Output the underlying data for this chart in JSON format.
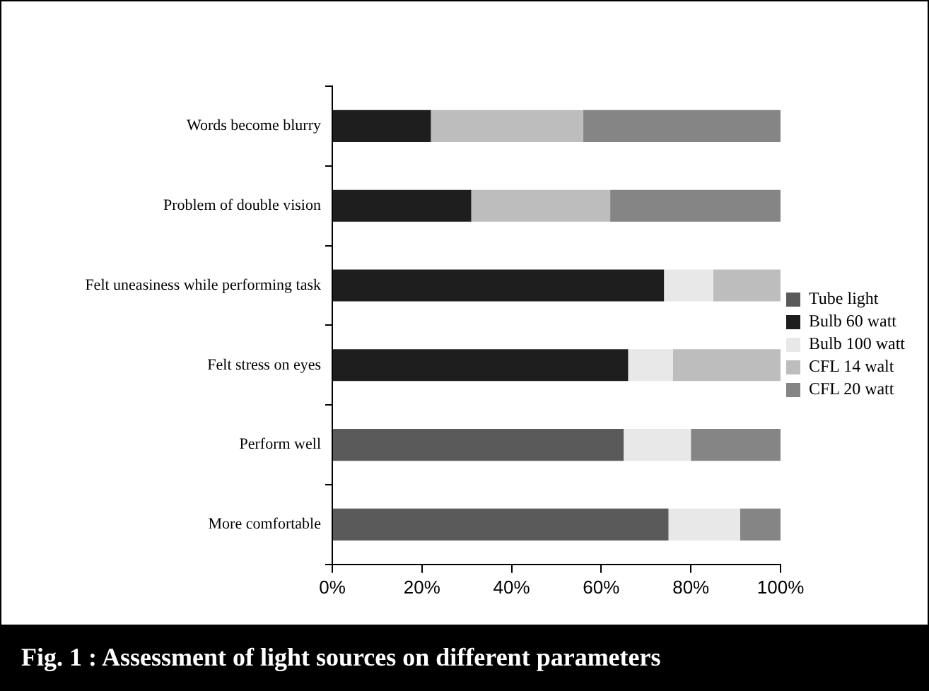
{
  "chart_data": {
    "type": "bar",
    "orientation": "horizontal",
    "stacked": true,
    "title": "Fig. 1 : Assessment of light sources on different parameters",
    "categories": [
      "Words become blurry",
      "Problem of double vision",
      "Felt uneasiness while performing task",
      "Felt stress on eyes",
      "Perform well",
      "More comfortable"
    ],
    "series": [
      {
        "name": "Tube light",
        "color": "#5a5a5a",
        "values": [
          null,
          null,
          null,
          null,
          65,
          75
        ]
      },
      {
        "name": "Bulb 60 watt",
        "color": "#1e1e1e",
        "values": [
          22,
          31,
          74,
          66,
          null,
          null
        ]
      },
      {
        "name": "Bulb 100 watt",
        "color": "#e8e8e8",
        "values": [
          null,
          null,
          11,
          10,
          15,
          16
        ]
      },
      {
        "name": "CFL 14 walt",
        "color": "#bdbdbd",
        "values": [
          34,
          31,
          15,
          24,
          null,
          null
        ]
      },
      {
        "name": "CFL 20 watt",
        "color": "#858585",
        "values": [
          44,
          38,
          null,
          null,
          20,
          9
        ]
      }
    ],
    "xlim": [
      0,
      100
    ],
    "xticks": [
      {
        "value": 0,
        "label": "0%"
      },
      {
        "value": 20,
        "label": "20%"
      },
      {
        "value": 40,
        "label": "40%"
      },
      {
        "value": 60,
        "label": "60%"
      },
      {
        "value": 80,
        "label": "80%"
      },
      {
        "value": 100,
        "label": "100%"
      }
    ],
    "grid": false,
    "legend": "right"
  }
}
